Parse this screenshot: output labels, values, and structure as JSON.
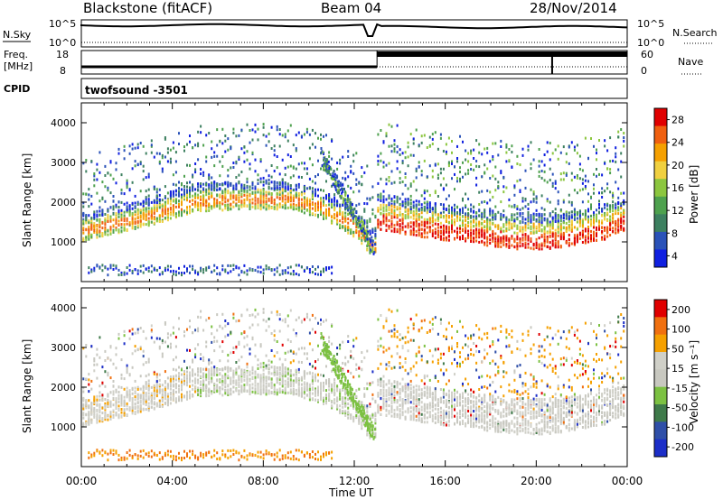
{
  "header": {
    "station": "Blackstone (fitACF)",
    "beam": "Beam 04",
    "date": "28/Nov/2014"
  },
  "nsky_panel": {
    "left_label": "N.Sky",
    "right_label": "N.Search",
    "left_ticks": [
      "10^5",
      "10^0"
    ],
    "right_ticks": [
      "10^5",
      "10^0"
    ]
  },
  "freq_panel": {
    "left_label_1": "Freq.",
    "left_label_2": "[MHz]",
    "right_label": "Nave",
    "left_ticks": [
      "18",
      "8"
    ],
    "right_ticks": [
      "60",
      "0"
    ]
  },
  "cpid_panel": {
    "label": "CPID",
    "program": "twofsound -3501"
  },
  "x_axis": {
    "title": "Time UT",
    "ticks": [
      "00:00",
      "04:00",
      "08:00",
      "12:00",
      "16:00",
      "20:00",
      "00:00"
    ]
  },
  "colors": {
    "power_scale": [
      "#1020e0",
      "#2a52b8",
      "#3d8060",
      "#4ea14e",
      "#8cc63f",
      "#f0d040",
      "#f5a000",
      "#f06010",
      "#e00000"
    ],
    "velocity_scale": [
      "#1c2ec8",
      "#2f4fa8",
      "#3f7a4a",
      "#7cc142",
      "#c8c8c0",
      "#d0d0c8",
      "#f5a000",
      "#f07010",
      "#e00000"
    ]
  },
  "chart_data": [
    {
      "type": "heatmap",
      "name": "power",
      "ylabel": "Slant Range [km]",
      "xlabel": "",
      "xlim": [
        0,
        24
      ],
      "ylim": [
        0,
        4500
      ],
      "yticks": [
        "1000",
        "2000",
        "3000",
        "4000"
      ],
      "colorbar": {
        "label": "Power [dB]",
        "ticks": [
          "28",
          "24",
          "20",
          "16",
          "12",
          "8",
          "4"
        ],
        "range": [
          0,
          32
        ]
      },
      "features": [
        {
          "desc": "main band",
          "x": [
            0,
            1.5,
            3,
            5,
            7,
            9,
            10.5,
            12,
            12.8
          ],
          "y": [
            1300,
            1500,
            1700,
            2050,
            2100,
            2100,
            1900,
            1400,
            900
          ]
        },
        {
          "desc": "strong band after 13UT",
          "x": [
            13,
            15,
            17,
            19,
            21,
            23,
            24
          ],
          "y": [
            1550,
            1350,
            1200,
            1050,
            1050,
            1300,
            1550
          ]
        },
        {
          "desc": "near range band",
          "x": [
            0.2,
            11
          ],
          "y": [
            300,
            300
          ]
        }
      ]
    },
    {
      "type": "heatmap",
      "name": "velocity",
      "ylabel": "Slant Range [km]",
      "xlabel": "Time UT",
      "xlim": [
        0,
        24
      ],
      "ylim": [
        0,
        4500
      ],
      "yticks": [
        "1000",
        "2000",
        "3000",
        "4000"
      ],
      "colorbar": {
        "label": "Velocity [m s⁻¹]",
        "ticks": [
          "200",
          "100",
          "50",
          "15",
          "-15",
          "-50",
          "-100",
          "-200"
        ],
        "range": [
          -250,
          250
        ]
      }
    }
  ]
}
